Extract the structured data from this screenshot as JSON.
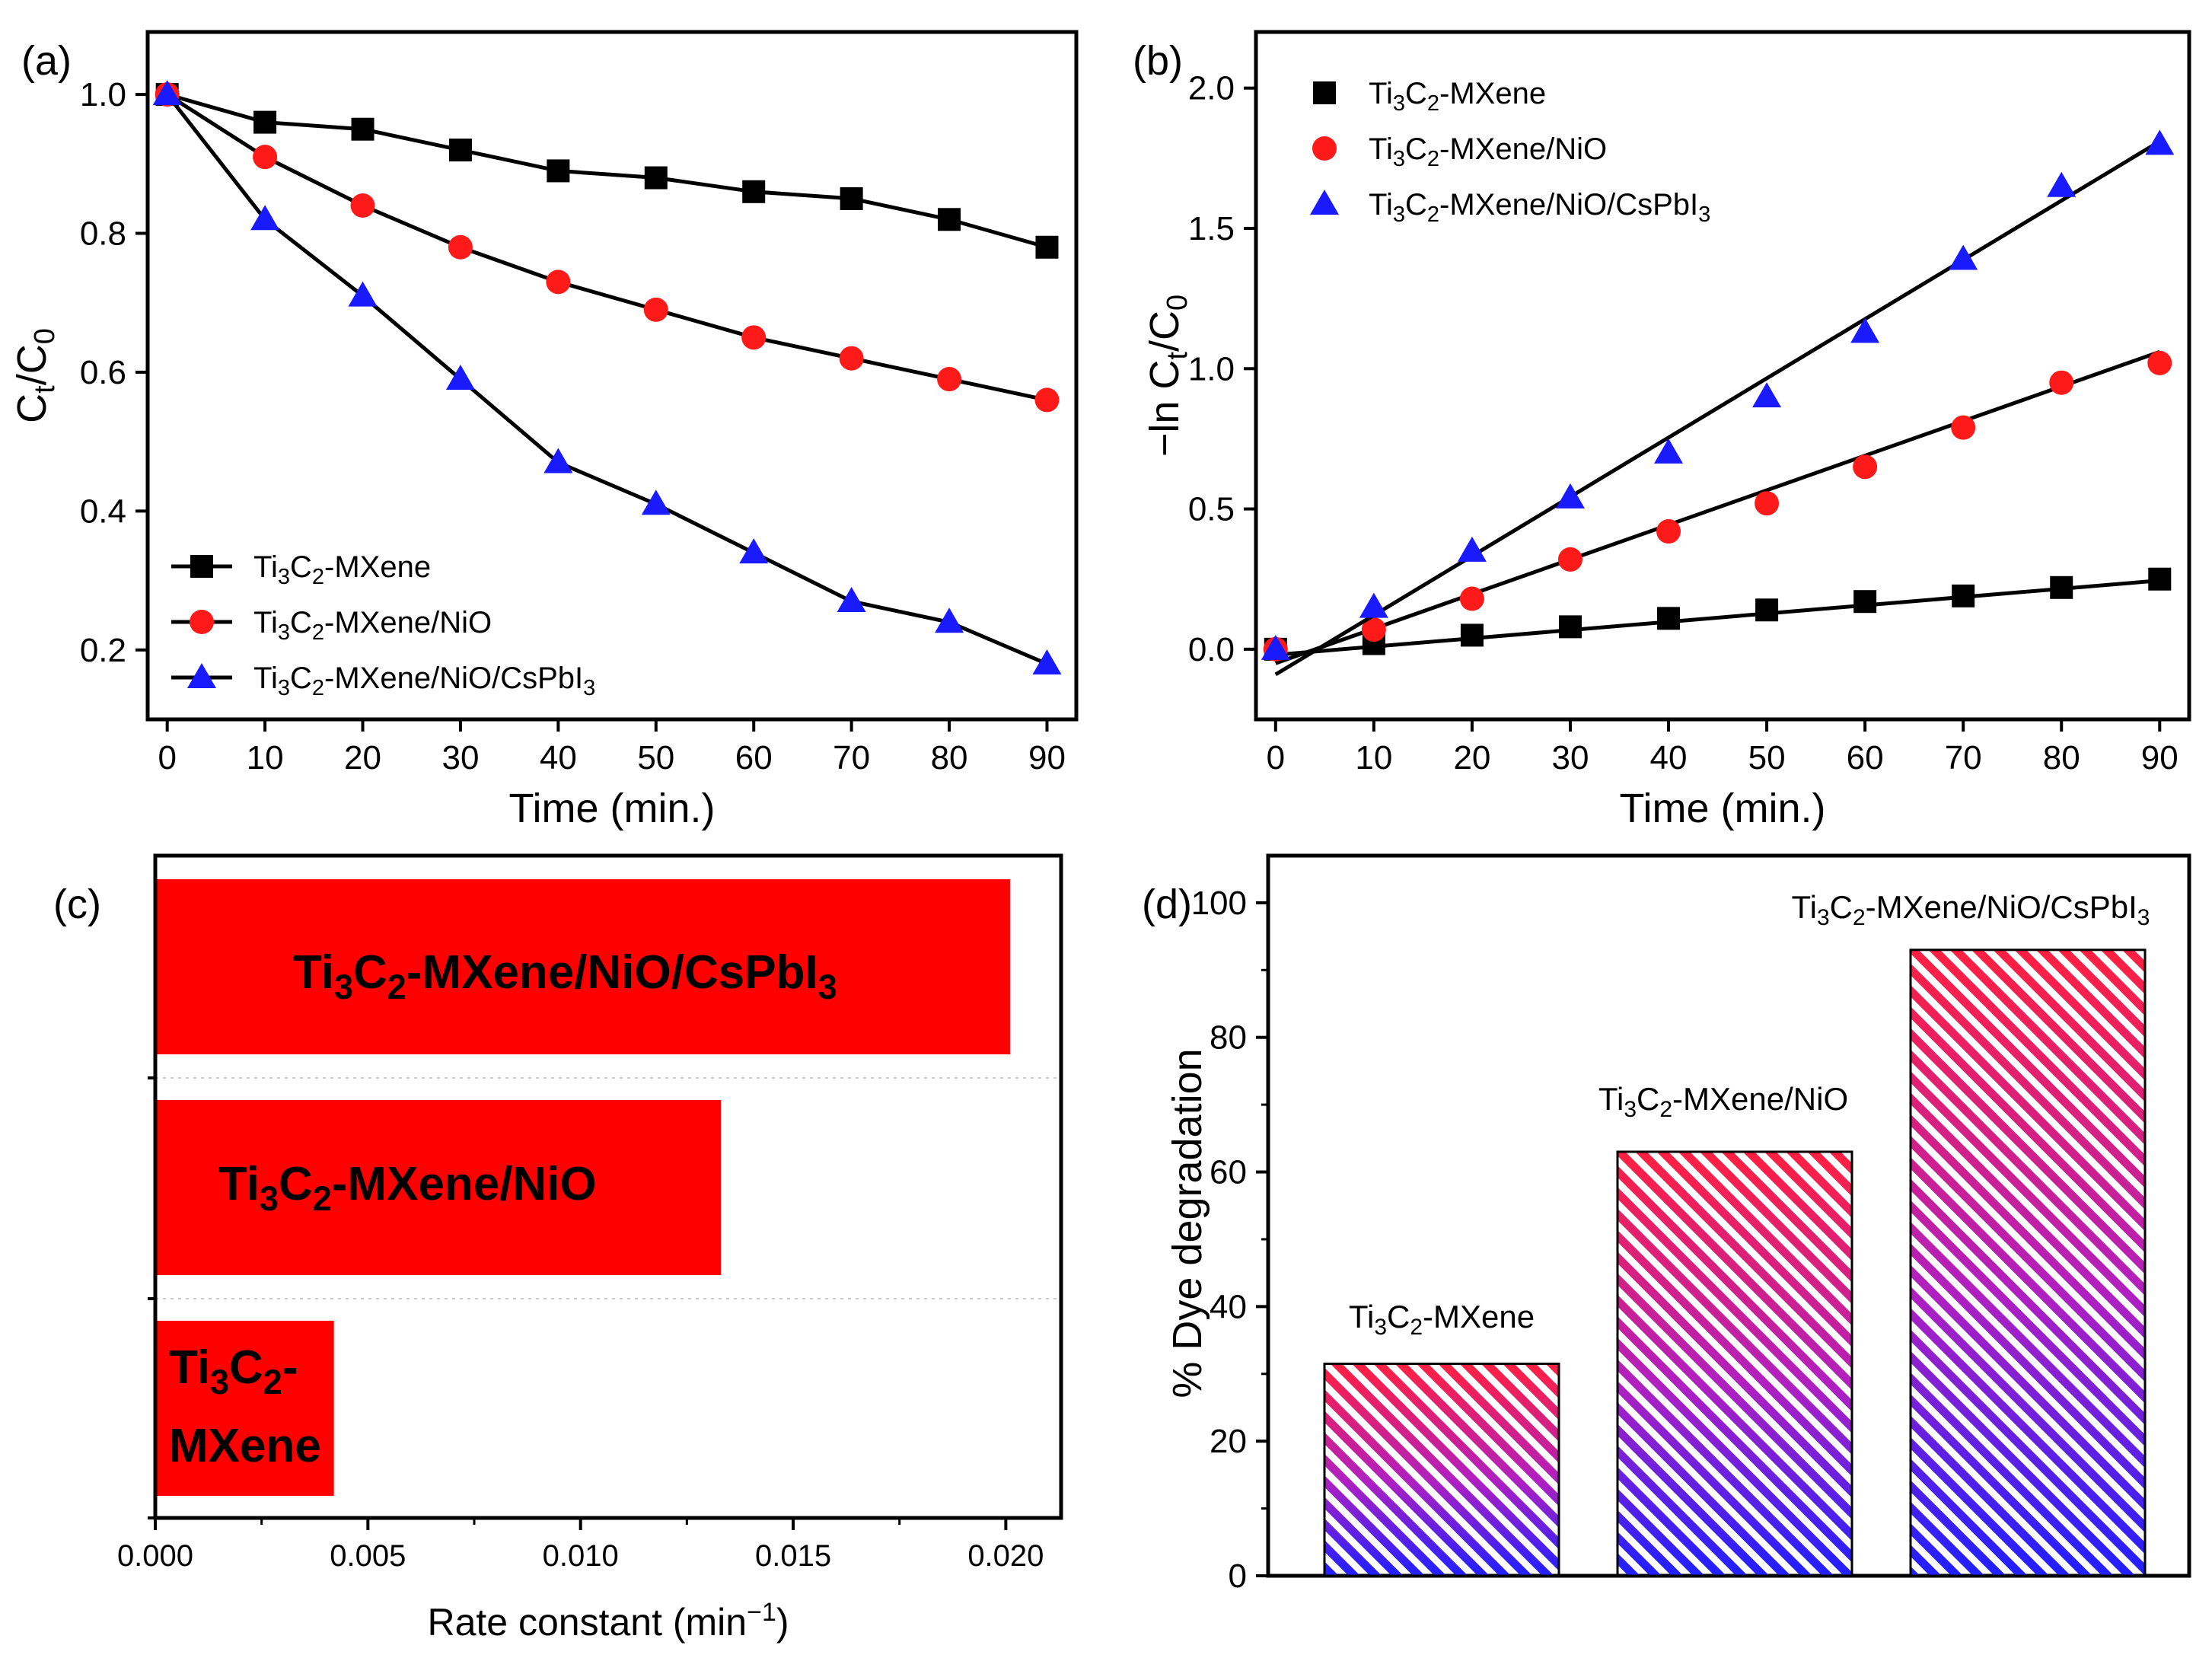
{
  "chart_data": [
    {
      "id": "a",
      "type": "line",
      "panel_label": "(a)",
      "xlabel": "Time (min.)",
      "ylabel": {
        "main": "C",
        "sub1": "t",
        "mid": "/C",
        "sub2": "0"
      },
      "xlim": [
        -2,
        93
      ],
      "ylim": [
        0.1,
        1.09
      ],
      "xticks": [
        0,
        10,
        20,
        30,
        40,
        50,
        60,
        70,
        80,
        90
      ],
      "xtick_labels": [
        "0",
        "10",
        "20",
        "30",
        "40",
        "50",
        "60",
        "70",
        "80",
        "90"
      ],
      "yticks": [
        0.2,
        0.4,
        0.6,
        0.8,
        1.0
      ],
      "ytick_labels": [
        "0.2",
        "0.4",
        "0.6",
        "0.8",
        "1.0"
      ],
      "x": [
        0,
        10,
        20,
        30,
        40,
        50,
        60,
        70,
        80,
        90
      ],
      "series": [
        {
          "name": "Ti3C2-MXene",
          "marker": "square",
          "color": "#000000",
          "values": [
            1.0,
            0.96,
            0.95,
            0.92,
            0.89,
            0.88,
            0.86,
            0.85,
            0.82,
            0.78
          ]
        },
        {
          "name": "Ti3C2-MXene/NiO",
          "marker": "circle",
          "color": "#ff1a1a",
          "values": [
            1.0,
            0.91,
            0.84,
            0.78,
            0.73,
            0.69,
            0.65,
            0.62,
            0.59,
            0.56
          ]
        },
        {
          "name": "Ti3C2-MXene/NiO/CsPbI3",
          "marker": "triangle",
          "color": "#1a1aff",
          "values": [
            1.0,
            0.82,
            0.71,
            0.59,
            0.47,
            0.41,
            0.34,
            0.27,
            0.24,
            0.18
          ]
        }
      ],
      "legend_position": "bottom-left"
    },
    {
      "id": "b",
      "type": "scatter",
      "panel_label": "(b)",
      "xlabel": "Time (min.)",
      "ylabel": {
        "main": "−ln C",
        "sub1": "t",
        "mid": "/C",
        "sub2": "0"
      },
      "xlim": [
        -2,
        93
      ],
      "ylim": [
        -0.25,
        2.2
      ],
      "xticks": [
        0,
        10,
        20,
        30,
        40,
        50,
        60,
        70,
        80,
        90
      ],
      "xtick_labels": [
        "0",
        "10",
        "20",
        "30",
        "40",
        "50",
        "60",
        "70",
        "80",
        "90"
      ],
      "yticks": [
        0.0,
        0.5,
        1.0,
        1.5,
        2.0
      ],
      "ytick_labels": [
        "0.0",
        "0.5",
        "1.0",
        "1.5",
        "2.0"
      ],
      "x": [
        0,
        10,
        20,
        30,
        40,
        50,
        60,
        70,
        80,
        90
      ],
      "series": [
        {
          "name": "Ti3C2-MXene",
          "marker": "square",
          "color": "#000000",
          "values": [
            0.0,
            0.02,
            0.05,
            0.08,
            0.11,
            0.14,
            0.17,
            0.19,
            0.22,
            0.25
          ],
          "fit": [
            [
              0,
              -0.02
            ],
            [
              90,
              0.245
            ]
          ]
        },
        {
          "name": "Ti3C2-MXene/NiO",
          "marker": "circle",
          "color": "#ff1a1a",
          "values": [
            0.0,
            0.07,
            0.18,
            0.32,
            0.42,
            0.52,
            0.65,
            0.79,
            0.95,
            1.02
          ],
          "fit": [
            [
              0,
              -0.05
            ],
            [
              90,
              1.06
            ]
          ]
        },
        {
          "name": "Ti3C2-MXene/NiO/CsPbI3",
          "marker": "triangle",
          "color": "#1a1aff",
          "values": [
            0.0,
            0.15,
            0.35,
            0.54,
            0.7,
            0.9,
            1.13,
            1.39,
            1.65,
            1.8
          ],
          "fit": [
            [
              0,
              -0.09
            ],
            [
              90,
              1.81
            ]
          ]
        }
      ],
      "legend_position": "top-left"
    },
    {
      "id": "c",
      "type": "bar",
      "orientation": "horizontal",
      "panel_label": "(c)",
      "xlabel": {
        "main": "Rate constant (min",
        "sup": "−1",
        "end": ")"
      },
      "xlim": [
        0,
        0.0213
      ],
      "xticks": [
        0.0,
        0.005,
        0.01,
        0.015,
        0.02
      ],
      "xtick_labels": [
        "0.000",
        "0.005",
        "0.010",
        "0.015",
        "0.020"
      ],
      "categories": [
        "Ti3C2-MXene",
        "Ti3C2-MXene/NiO",
        "Ti3C2-MXene/NiO/CsPbI3"
      ],
      "values": [
        0.0042,
        0.0133,
        0.0201
      ],
      "bar_color": "#ff0000",
      "bar_labels": [
        {
          "line1": "Ti3C2-",
          "line2": "MXene"
        },
        {
          "text": "Ti3C2-MXene/NiO"
        },
        {
          "text": "Ti3C2-MXene/NiO/CsPbI3"
        }
      ]
    },
    {
      "id": "d",
      "type": "bar",
      "panel_label": "(d)",
      "ylabel": "% Dye degradation",
      "ylim": [
        0,
        107
      ],
      "yticks": [
        0,
        20,
        40,
        60,
        80,
        100
      ],
      "ytick_labels": [
        "0",
        "20",
        "40",
        "60",
        "80",
        "100"
      ],
      "categories": [
        "Ti3C2-MXene",
        "Ti3C2-MXene/NiO",
        "Ti3C2-MXene/NiO/CsPbI3"
      ],
      "values": [
        31.5,
        63,
        93
      ],
      "fill": "hatched red-to-blue gradient",
      "gradient_colors": [
        "#ff2040",
        "#2020ff"
      ]
    }
  ]
}
